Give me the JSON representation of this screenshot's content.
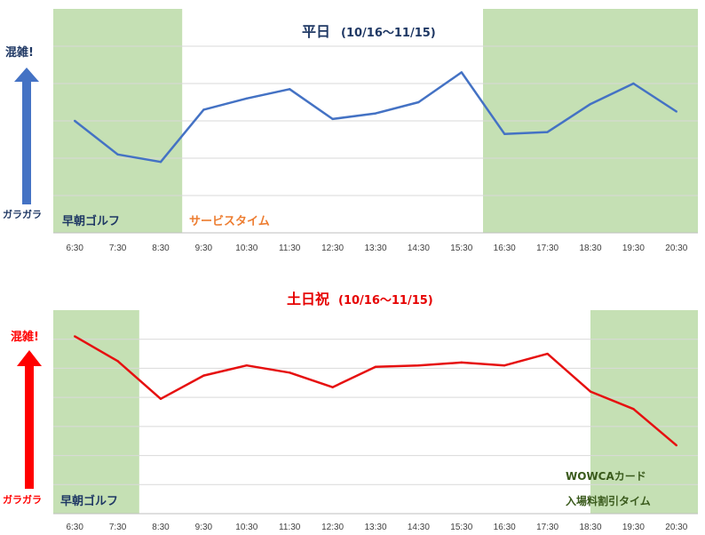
{
  "colors": {
    "band": "#c5e0b4",
    "grid": "#d9d9d9",
    "axis": "#bfbfbf",
    "weekday_line": "#4472c4",
    "weekend_line": "#e61010",
    "weekday_title": "#1f3864",
    "weekend_title": "#e60000",
    "weekday_arrow": "#4472c4",
    "weekend_arrow": "#ff0000",
    "golf_label": "#1f3864",
    "service_label": "#ed7d31",
    "wowca_label": "#3a5a1c",
    "tick": "#404040"
  },
  "chart_data": [
    {
      "type": "line",
      "title": "平日",
      "subtitle": "(10/16〜11/15)",
      "categories": [
        "6:30",
        "7:30",
        "8:30",
        "9:30",
        "10:30",
        "11:30",
        "12:30",
        "13:30",
        "14:30",
        "15:30",
        "16:30",
        "17:30",
        "18:30",
        "19:30",
        "20:30"
      ],
      "series": [
        {
          "values": [
            3.0,
            2.1,
            1.9,
            3.3,
            3.6,
            3.85,
            3.05,
            3.2,
            3.5,
            4.3,
            2.65,
            2.7,
            3.45,
            4.0,
            3.25
          ]
        }
      ],
      "ylim": [
        0,
        6
      ],
      "grid": true,
      "y_high_label": "混雑!",
      "y_low_label": "ガラガラ",
      "bands": [
        {
          "from": "6:30",
          "to": "8:30",
          "label": "早朝ゴルフ"
        },
        {
          "from": "16:30",
          "to": "20:30",
          "label": ""
        }
      ],
      "annotations": {
        "service_time": "サービスタイム"
      }
    },
    {
      "type": "line",
      "title": "土日祝",
      "subtitle": "(10/16〜11/15)",
      "categories": [
        "6:30",
        "7:30",
        "8:30",
        "9:30",
        "10:30",
        "11:30",
        "12:30",
        "13:30",
        "14:30",
        "15:30",
        "16:30",
        "17:30",
        "18:30",
        "19:30",
        "20:30"
      ],
      "series": [
        {
          "values": [
            6.1,
            5.25,
            3.95,
            4.75,
            5.1,
            4.85,
            4.35,
            5.05,
            5.1,
            5.2,
            5.1,
            5.5,
            4.2,
            3.6,
            2.35
          ]
        }
      ],
      "ylim": [
        0,
        7
      ],
      "grid": true,
      "y_high_label": "混雑!",
      "y_low_label": "ガラガラ",
      "bands": [
        {
          "from": "6:30",
          "to": "7:30",
          "label": "早朝ゴルフ"
        },
        {
          "from": "19:00",
          "to": "20:30",
          "label": ""
        }
      ],
      "annotations": {
        "wowca_line1": "WOWCAカード",
        "wowca_line2": "入場料割引タイム"
      }
    }
  ]
}
